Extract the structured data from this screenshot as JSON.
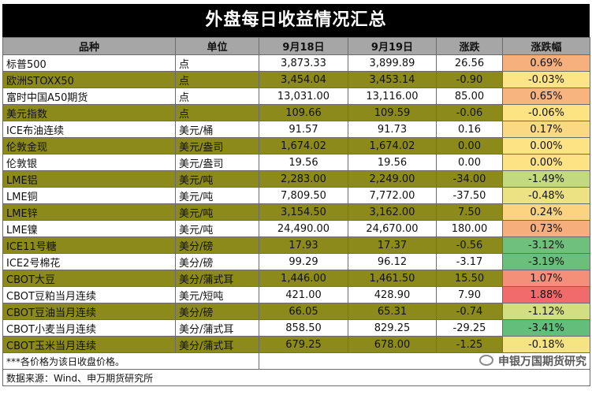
{
  "title": "外盘每日收益情况汇总",
  "headers": [
    "品种",
    "单位",
    "9月18日",
    "9月19日",
    "涨跌",
    "涨跌幅"
  ],
  "rows": [
    {
      "name": "标普500",
      "unit": "点",
      "d1": "3,873.33",
      "d2": "3,899.89",
      "chg": "26.56",
      "pct": "0.69%",
      "pct_color": "#f6b07d"
    },
    {
      "name": "欧洲STOXX50",
      "unit": "点",
      "d1": "3,454.04",
      "d2": "3,453.14",
      "chg": "-0.90",
      "pct": "-0.03%",
      "pct_color": "#fde484"
    },
    {
      "name": "富时中国A50期货",
      "unit": "点",
      "d1": "13,031.00",
      "d2": "13,116.00",
      "chg": "85.00",
      "pct": "0.65%",
      "pct_color": "#f7b47e"
    },
    {
      "name": "美元指数",
      "unit": "点",
      "d1": "109.66",
      "d2": "109.59",
      "chg": "-0.06",
      "pct": "-0.06%",
      "pct_color": "#fce483"
    },
    {
      "name": "ICE布油连续",
      "unit": "美元/桶",
      "d1": "91.57",
      "d2": "91.73",
      "chg": "0.16",
      "pct": "0.17%",
      "pct_color": "#fbd882"
    },
    {
      "name": "伦敦金现",
      "unit": "美元/盎司",
      "d1": "1,674.02",
      "d2": "1,674.02",
      "chg": "0.00",
      "pct": "0.00%",
      "pct_color": "#fde383"
    },
    {
      "name": "伦敦银",
      "unit": "美元/盎司",
      "d1": "19.56",
      "d2": "19.56",
      "chg": "0.00",
      "pct": "0.00%",
      "pct_color": "#fde383"
    },
    {
      "name": "LME铝",
      "unit": "美元/吨",
      "d1": "2,283.00",
      "d2": "2,249.00",
      "chg": "-34.00",
      "pct": "-1.49%",
      "pct_color": "#c2d981"
    },
    {
      "name": "LME铜",
      "unit": "美元/吨",
      "d1": "7,809.50",
      "d2": "7,772.00",
      "chg": "-37.50",
      "pct": "-0.48%",
      "pct_color": "#ece283"
    },
    {
      "name": "LME锌",
      "unit": "美元/吨",
      "d1": "3,154.50",
      "d2": "3,162.00",
      "chg": "7.50",
      "pct": "0.24%",
      "pct_color": "#fbd381"
    },
    {
      "name": "LME镍",
      "unit": "美元/吨",
      "d1": "24,490.00",
      "d2": "24,670.00",
      "chg": "180.00",
      "pct": "0.73%",
      "pct_color": "#f6ae7d"
    },
    {
      "name": "ICE11号糖",
      "unit": "美分/磅",
      "d1": "17.93",
      "d2": "17.37",
      "chg": "-0.56",
      "pct": "-3.12%",
      "pct_color": "#6fc07c"
    },
    {
      "name": "ICE2号棉花",
      "unit": "美分/磅",
      "d1": "99.29",
      "d2": "96.12",
      "chg": "-3.17",
      "pct": "-3.19%",
      "pct_color": "#6bbf7b"
    },
    {
      "name": "CBOT大豆",
      "unit": "美分/蒲式耳",
      "d1": "1,446.00",
      "d2": "1,461.50",
      "chg": "15.50",
      "pct": "1.07%",
      "pct_color": "#f48f79"
    },
    {
      "name": "CBOT豆粕当月连续",
      "unit": "美元/短吨",
      "d1": "421.00",
      "d2": "428.90",
      "chg": "7.90",
      "pct": "1.88%",
      "pct_color": "#f26b6c"
    },
    {
      "name": "CBOT豆油当月连续",
      "unit": "美分/磅",
      "d1": "66.05",
      "d2": "65.31",
      "chg": "-0.74",
      "pct": "-1.12%",
      "pct_color": "#d3dd82"
    },
    {
      "name": "CBOT小麦当月连续",
      "unit": "美分/蒲式耳",
      "d1": "858.50",
      "d2": "829.25",
      "chg": "-29.25",
      "pct": "-3.41%",
      "pct_color": "#63be7b"
    },
    {
      "name": "CBOT玉米当月连续",
      "unit": "美分/蒲式耳",
      "d1": "679.25",
      "d2": "678.00",
      "chg": "-1.25",
      "pct": "-0.18%",
      "pct_color": "#f6e483"
    }
  ],
  "note": "***各价格为该日收盘价格。",
  "source": "数据来源：Wind、申万期货研究所",
  "brand": "申银万国期货研究",
  "colors": {
    "title_bg": "#000000",
    "header_bg": "#a6a6a6",
    "stripe": "#8c8a1a"
  }
}
